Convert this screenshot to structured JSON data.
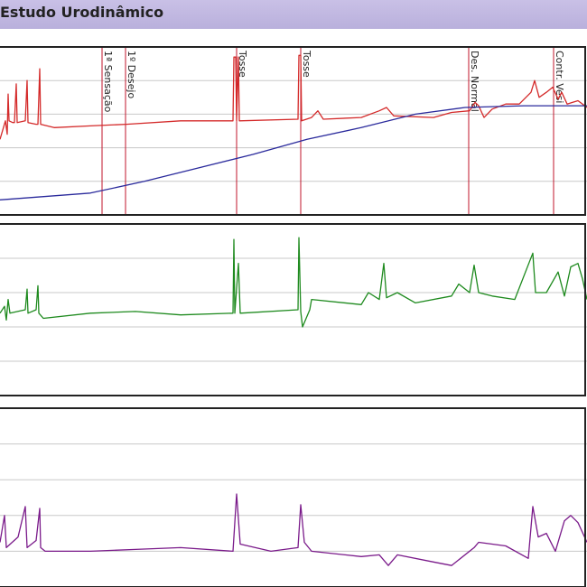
{
  "window": {
    "title": "Estudo Urodinâmico"
  },
  "chart_data": {
    "type": "line",
    "title": "",
    "xlabel": "",
    "time_range": [
      0,
      650
    ],
    "events": [
      {
        "label": "1ª Sensação",
        "t": 113
      },
      {
        "label": "1º Desejo",
        "t": 139
      },
      {
        "label": "Tosse",
        "t": 262
      },
      {
        "label": "Tosse",
        "t": 333
      },
      {
        "label": "Des. Normal",
        "t": 519
      },
      {
        "label": "Contr. Vesi",
        "t": 613
      }
    ],
    "panels": [
      {
        "id": "panel-1",
        "grid_lines": 4,
        "ylim": [
          0,
          100
        ],
        "series": [
          {
            "color": "#d42a2a",
            "points": [
              [
                0,
                45
              ],
              [
                6,
                56
              ],
              [
                8,
                48
              ],
              [
                9,
                72
              ],
              [
                10,
                56
              ],
              [
                14,
                55
              ],
              [
                16,
                55
              ],
              [
                18,
                78
              ],
              [
                19,
                55
              ],
              [
                28,
                56
              ],
              [
                30,
                80
              ],
              [
                31,
                55
              ],
              [
                40,
                54
              ],
              [
                42,
                54
              ],
              [
                44,
                87
              ],
              [
                45,
                54
              ],
              [
                60,
                52
              ],
              [
                100,
                53
              ],
              [
                140,
                54
              ],
              [
                200,
                56
              ],
              [
                258,
                56
              ],
              [
                259,
                94
              ],
              [
                261,
                94
              ],
              [
                262,
                56
              ],
              [
                264,
                94
              ],
              [
                265,
                56
              ],
              [
                330,
                57
              ],
              [
                331,
                95
              ],
              [
                333,
                95
              ],
              [
                334,
                56
              ],
              [
                345,
                58
              ],
              [
                352,
                62
              ],
              [
                358,
                57
              ],
              [
                400,
                58
              ],
              [
                420,
                62
              ],
              [
                428,
                64
              ],
              [
                436,
                59
              ],
              [
                480,
                58
              ],
              [
                500,
                61
              ],
              [
                520,
                62
              ],
              [
                526,
                67
              ],
              [
                530,
                65
              ],
              [
                536,
                58
              ],
              [
                545,
                63
              ],
              [
                560,
                66
              ],
              [
                575,
                66
              ],
              [
                588,
                73
              ],
              [
                592,
                80
              ],
              [
                597,
                70
              ],
              [
                605,
                73
              ],
              [
                612,
                76
              ],
              [
                618,
                69
              ],
              [
                622,
                73
              ],
              [
                628,
                66
              ],
              [
                640,
                68
              ],
              [
                650,
                64
              ]
            ]
          },
          {
            "color": "#2a2a9c",
            "points": [
              [
                0,
                9
              ],
              [
                100,
                13
              ],
              [
                160,
                20
              ],
              [
                220,
                28
              ],
              [
                280,
                36
              ],
              [
                340,
                45
              ],
              [
                400,
                52
              ],
              [
                460,
                60
              ],
              [
                515,
                64
              ],
              [
                580,
                65
              ],
              [
                650,
                65
              ]
            ]
          }
        ]
      },
      {
        "id": "panel-2",
        "grid_lines": 4,
        "ylim": [
          0,
          100
        ],
        "series": [
          {
            "color": "#1e8a1e",
            "points": [
              [
                0,
                48
              ],
              [
                5,
                52
              ],
              [
                7,
                44
              ],
              [
                9,
                56
              ],
              [
                11,
                48
              ],
              [
                28,
                50
              ],
              [
                30,
                62
              ],
              [
                31,
                48
              ],
              [
                40,
                50
              ],
              [
                42,
                64
              ],
              [
                43,
                48
              ],
              [
                48,
                45
              ],
              [
                100,
                48
              ],
              [
                150,
                49
              ],
              [
                200,
                47
              ],
              [
                258,
                48
              ],
              [
                259,
                91
              ],
              [
                260,
                48
              ],
              [
                264,
                77
              ],
              [
                266,
                48
              ],
              [
                330,
                50
              ],
              [
                331,
                92
              ],
              [
                333,
                49
              ],
              [
                335,
                40
              ],
              [
                343,
                50
              ],
              [
                345,
                56
              ],
              [
                400,
                53
              ],
              [
                408,
                60
              ],
              [
                420,
                56
              ],
              [
                425,
                77
              ],
              [
                428,
                57
              ],
              [
                440,
                60
              ],
              [
                460,
                54
              ],
              [
                500,
                58
              ],
              [
                508,
                65
              ],
              [
                520,
                60
              ],
              [
                525,
                76
              ],
              [
                530,
                60
              ],
              [
                545,
                58
              ],
              [
                570,
                56
              ],
              [
                590,
                83
              ],
              [
                593,
                60
              ],
              [
                605,
                60
              ],
              [
                618,
                72
              ],
              [
                625,
                58
              ],
              [
                632,
                75
              ],
              [
                640,
                77
              ],
              [
                645,
                68
              ],
              [
                650,
                56
              ]
            ]
          }
        ]
      },
      {
        "id": "panel-3",
        "grid_lines": 4,
        "ylim": [
          0,
          100
        ],
        "series": [
          {
            "color": "#7a1a8a",
            "points": [
              [
                0,
                25
              ],
              [
                5,
                40
              ],
              [
                7,
                22
              ],
              [
                20,
                28
              ],
              [
                28,
                45
              ],
              [
                30,
                22
              ],
              [
                40,
                26
              ],
              [
                44,
                44
              ],
              [
                45,
                22
              ],
              [
                50,
                20
              ],
              [
                100,
                20
              ],
              [
                150,
                21
              ],
              [
                200,
                22
              ],
              [
                258,
                20
              ],
              [
                262,
                52
              ],
              [
                266,
                24
              ],
              [
                300,
                20
              ],
              [
                330,
                22
              ],
              [
                333,
                46
              ],
              [
                337,
                25
              ],
              [
                345,
                20
              ],
              [
                400,
                17
              ],
              [
                420,
                18
              ],
              [
                430,
                12
              ],
              [
                440,
                18
              ],
              [
                480,
                14
              ],
              [
                500,
                12
              ],
              [
                525,
                22
              ],
              [
                530,
                25
              ],
              [
                560,
                23
              ],
              [
                585,
                16
              ],
              [
                590,
                45
              ],
              [
                596,
                28
              ],
              [
                605,
                30
              ],
              [
                615,
                20
              ],
              [
                625,
                37
              ],
              [
                632,
                40
              ],
              [
                640,
                36
              ],
              [
                650,
                25
              ]
            ]
          }
        ]
      }
    ]
  }
}
